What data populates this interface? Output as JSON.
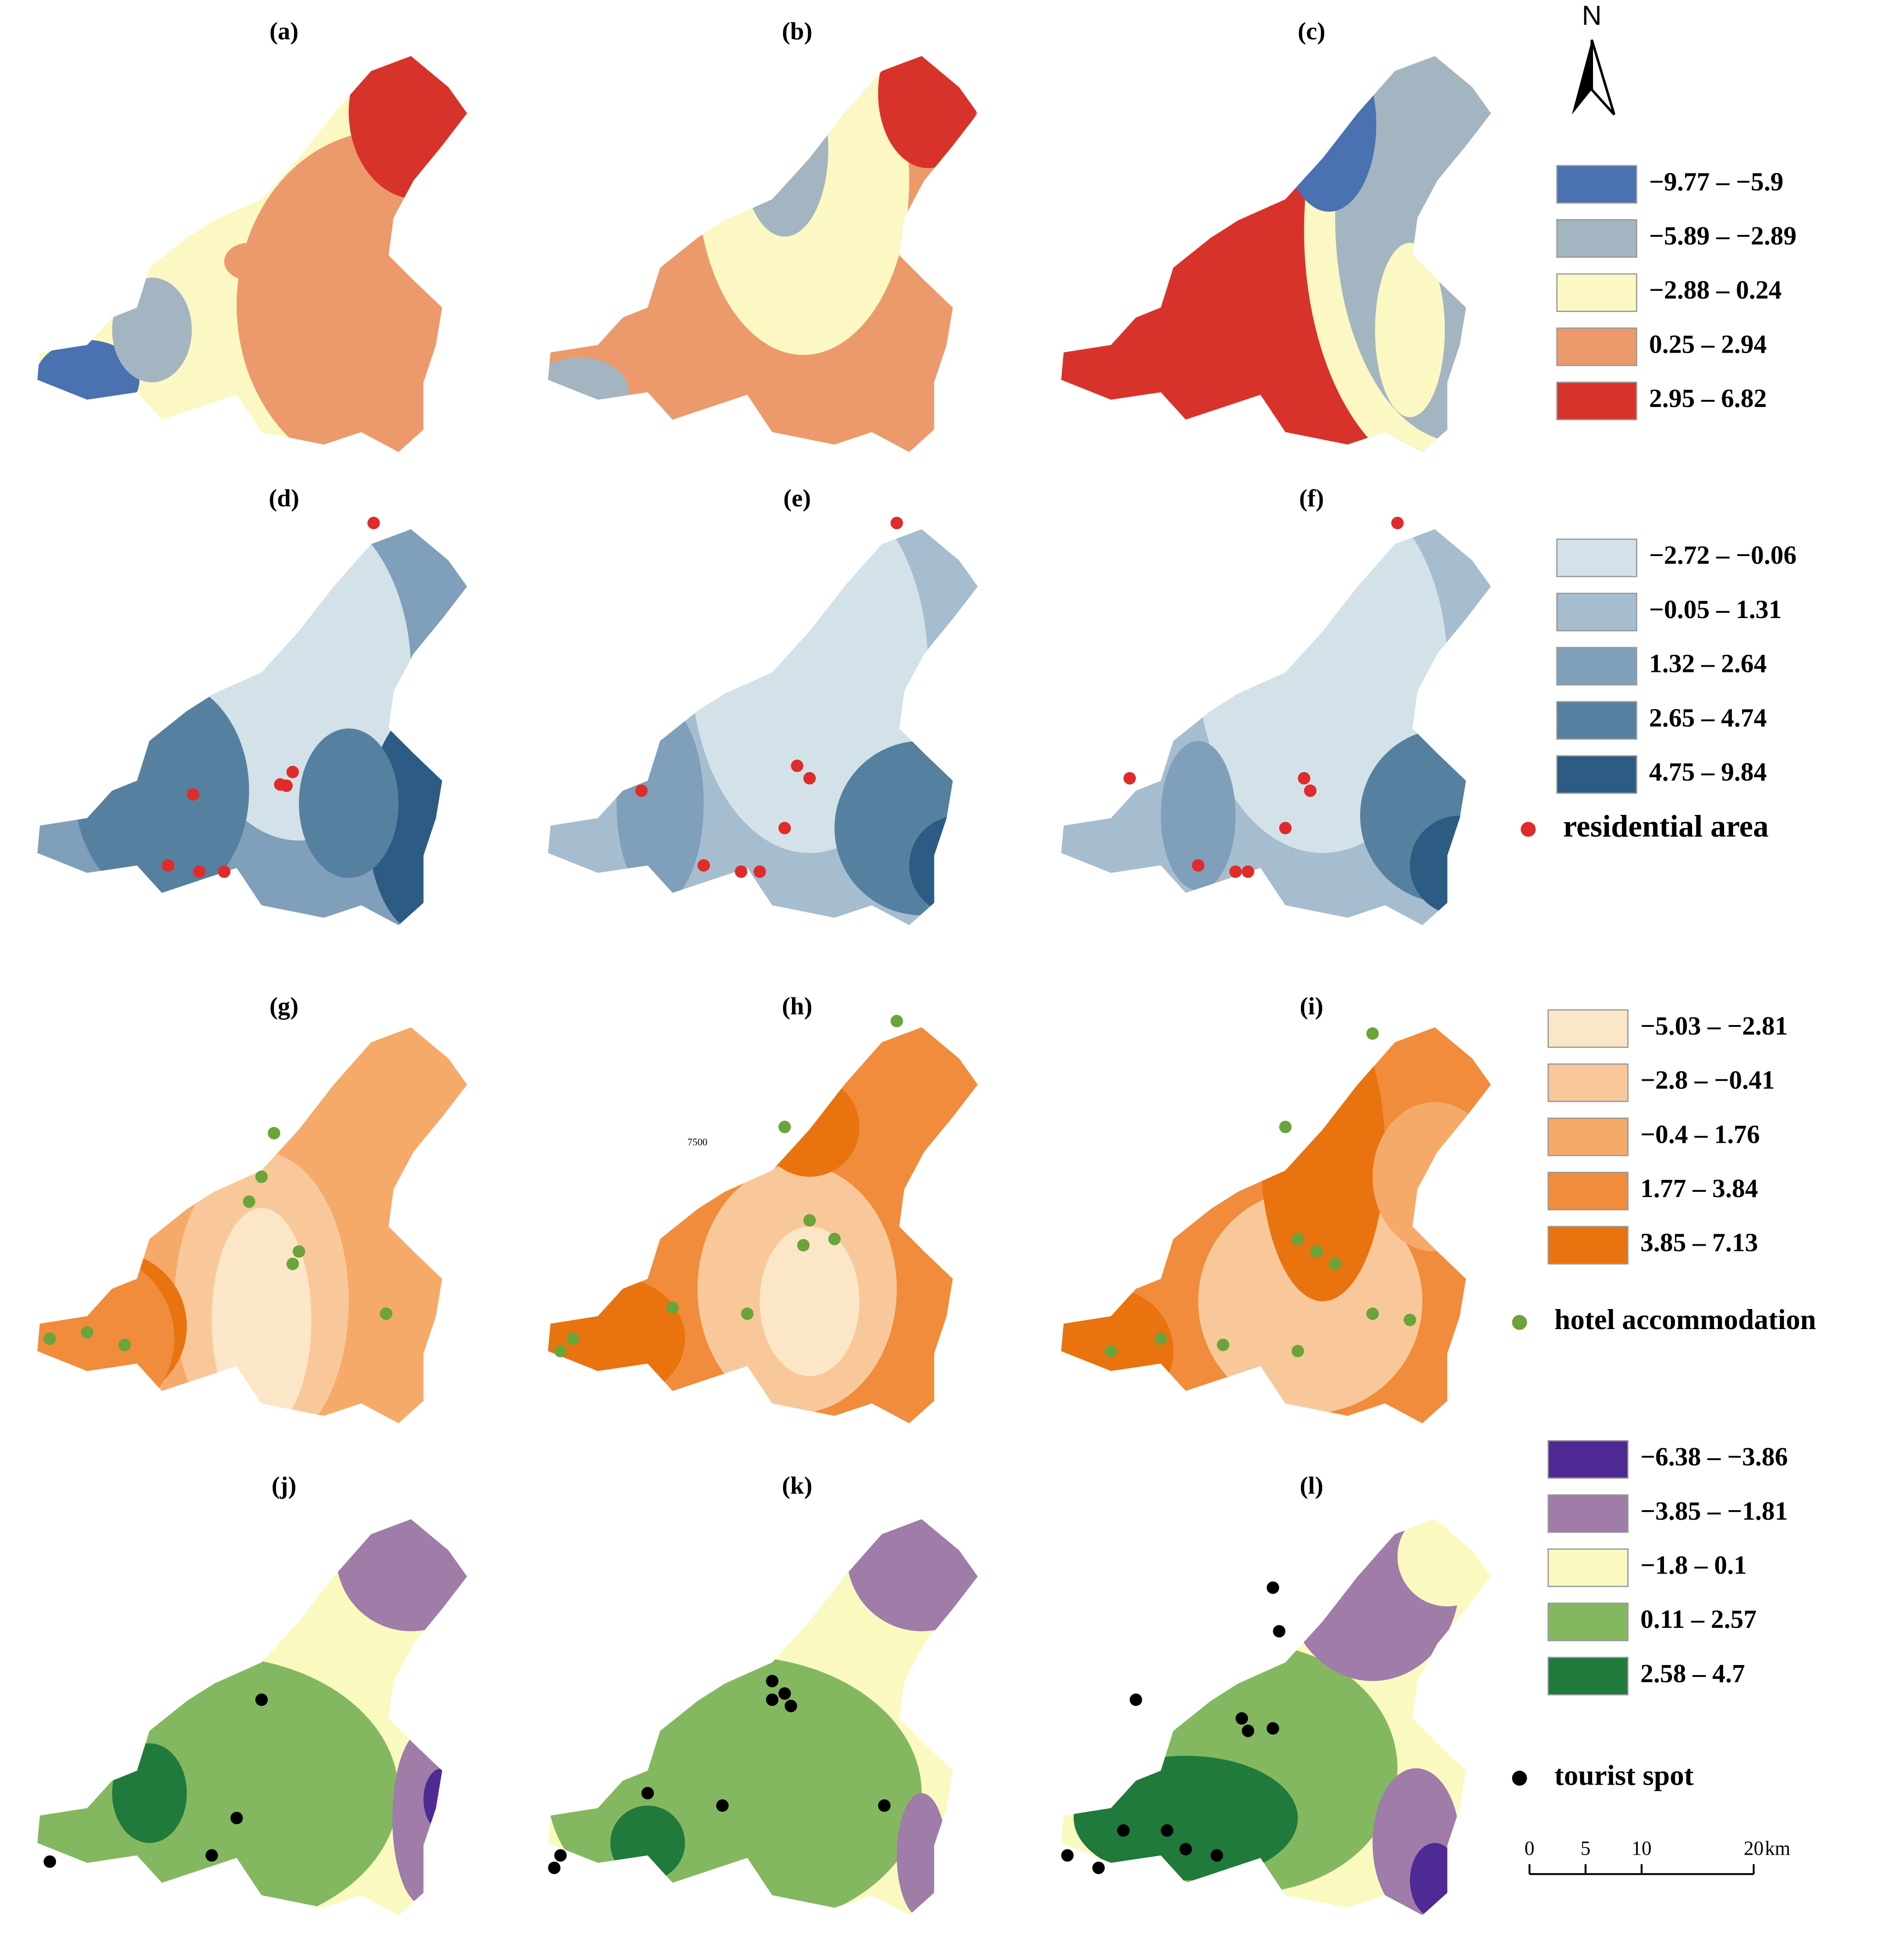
{
  "panels": [
    "(a)",
    "(b)",
    "(c)",
    "(d)",
    "(e)",
    "(f)",
    "(g)",
    "(h)",
    "(i)",
    "(j)",
    "(k)",
    "(l)"
  ],
  "north": "N",
  "annotation": "7500",
  "legends": [
    {
      "classes": [
        {
          "label": "−9.77 – −5.9",
          "color": "#4a72b0"
        },
        {
          "label": "−5.89 – −2.89",
          "color": "#a3b5c0"
        },
        {
          "label": "−2.88 – 0.24",
          "color": "#fbf8c4"
        },
        {
          "label": "0.25 – 2.94",
          "color": "#ec9a6c"
        },
        {
          "label": "2.95 – 6.82",
          "color": "#d7332b"
        }
      ]
    },
    {
      "classes": [
        {
          "label": "−2.72 – −0.06",
          "color": "#d2e2e8"
        },
        {
          "label": "−0.05 – 1.31",
          "color": "#a6bdd0"
        },
        {
          "label": "1.32 – 2.64",
          "color": "#7f9fbb"
        },
        {
          "label": "2.65 – 4.74",
          "color": "#56809f"
        },
        {
          "label": "4.75 – 9.84",
          "color": "#2c5c83"
        }
      ],
      "point": {
        "label": "residential  area",
        "color": "#e02b2b"
      }
    },
    {
      "classes": [
        {
          "label": "−5.03 – −2.81",
          "color": "#fce6c8"
        },
        {
          "label": "−2.8 – −0.41",
          "color": "#f9c89a"
        },
        {
          "label": "−0.4 – 1.76",
          "color": "#f5aa6a"
        },
        {
          "label": "1.77 – 3.84",
          "color": "#f08c3c"
        },
        {
          "label": "3.85 – 7.13",
          "color": "#e8730f"
        }
      ],
      "point": {
        "label": "hotel accommodation",
        "color": "#6aa43a"
      }
    },
    {
      "classes": [
        {
          "label": "−6.38 – −3.86",
          "color": "#4e2a94"
        },
        {
          "label": "−3.85 – −1.81",
          "color": "#a07ca8"
        },
        {
          "label": "−1.8 – 0.1",
          "color": "#fafac0"
        },
        {
          "label": "0.11 – 2.57",
          "color": "#84b860"
        },
        {
          "label": "2.58 – 4.7",
          "color": "#1f7a3c"
        }
      ],
      "point": {
        "label": "tourist spot",
        "color": "#000000"
      }
    }
  ],
  "scale_bar": {
    "ticks": [
      0,
      5,
      10,
      20
    ],
    "unit": "km"
  }
}
